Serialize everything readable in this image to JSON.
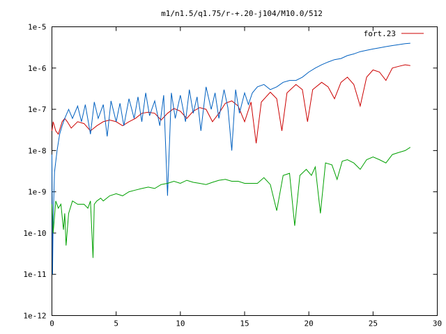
{
  "chart_data": {
    "type": "line",
    "title": "m1/n1.5/q1.75/r-+.20-j104/M10.0/512",
    "xlabel": "",
    "ylabel": "",
    "xlim": [
      0,
      30
    ],
    "ylim": [
      1e-12,
      1e-05
    ],
    "yscale": "log",
    "grid": false,
    "legend_position": "top-right",
    "x_ticks": [
      0,
      5,
      10,
      15,
      20,
      25,
      30
    ],
    "x_tick_labels": [
      "0",
      "5",
      "10",
      "15",
      "20",
      "25",
      "30"
    ],
    "y_ticks": [
      1e-12,
      1e-11,
      1e-10,
      1e-09,
      1e-08,
      1e-07,
      1e-06,
      1e-05
    ],
    "y_tick_labels": [
      "1e-12",
      "1e-11",
      "1e-10",
      "1e-9",
      "1e-8",
      "1e-7",
      "1e-6",
      "1e-5"
    ],
    "series": [
      {
        "name": "fort.23",
        "color": "#cc0000",
        "x": [
          0,
          0.1,
          0.3,
          0.5,
          0.8,
          1.0,
          1.2,
          1.5,
          2.0,
          2.5,
          3.0,
          3.5,
          4.0,
          4.5,
          5.0,
          5.5,
          6.0,
          6.5,
          7.0,
          7.5,
          8.0,
          8.5,
          9.0,
          9.5,
          10.0,
          10.5,
          11.0,
          11.5,
          12.0,
          12.5,
          13.0,
          13.5,
          14.0,
          14.5,
          15.0,
          15.5,
          15.9,
          16.3,
          17.0,
          17.5,
          17.9,
          18.3,
          19.0,
          19.5,
          19.9,
          20.3,
          21.0,
          21.5,
          22.0,
          22.5,
          23.0,
          23.5,
          24.0,
          24.5,
          25.0,
          25.5,
          26.0,
          26.5,
          27.0,
          27.5,
          27.9
        ],
        "y": [
          3e-08,
          5e-08,
          3e-08,
          2.5e-08,
          5e-08,
          6e-08,
          5e-08,
          3.5e-08,
          5e-08,
          4.5e-08,
          3e-08,
          4e-08,
          5e-08,
          5.5e-08,
          5e-08,
          4e-08,
          5e-08,
          6e-08,
          8e-08,
          8.5e-08,
          8e-08,
          5.5e-08,
          8e-08,
          1.05e-07,
          9e-08,
          6e-08,
          9e-08,
          1.1e-07,
          1e-07,
          5e-08,
          8e-08,
          1.4e-07,
          1.6e-07,
          1.2e-07,
          5e-08,
          1.5e-07,
          1.5e-08,
          1.5e-07,
          2.6e-07,
          1.8e-07,
          3e-08,
          2.5e-07,
          4e-07,
          3e-07,
          5e-08,
          3e-07,
          4.5e-07,
          3.5e-07,
          1.8e-07,
          4.5e-07,
          6e-07,
          4e-07,
          1.2e-07,
          6e-07,
          9e-07,
          8e-07,
          5e-07,
          1e-06,
          1.1e-06,
          1.2e-06,
          1.15e-06
        ]
      },
      {
        "name": "",
        "color": "#0060c0",
        "x": [
          0,
          0.05,
          0.1,
          0.2,
          0.4,
          0.6,
          0.8,
          1.0,
          1.3,
          1.6,
          2.0,
          2.3,
          2.6,
          3.0,
          3.3,
          3.6,
          4.0,
          4.3,
          4.6,
          5.0,
          5.3,
          5.6,
          6.0,
          6.4,
          6.7,
          7.0,
          7.3,
          7.6,
          8.0,
          8.4,
          8.7,
          9.0,
          9.3,
          9.6,
          10.0,
          10.4,
          10.7,
          11.0,
          11.3,
          11.6,
          12.0,
          12.4,
          12.7,
          13.0,
          13.4,
          13.7,
          14.0,
          14.3,
          14.6,
          15.0,
          15.3,
          15.6,
          16.0,
          16.5,
          17.0,
          17.5,
          18.0,
          18.5,
          19.0,
          19.5,
          20.0,
          20.5,
          21.0,
          21.5,
          22.0,
          22.5,
          23.0,
          23.5,
          24.0,
          24.5,
          25.0,
          25.5,
          26.0,
          26.5,
          27.0,
          27.5,
          27.9
        ],
        "y": [
          8e-09,
          1e-11,
          2e-10,
          3e-09,
          1e-08,
          2.5e-08,
          4e-08,
          6e-08,
          1e-07,
          6e-08,
          1.2e-07,
          5e-08,
          1.3e-07,
          2.5e-08,
          1.5e-07,
          6e-08,
          1.3e-07,
          2.2e-08,
          1.6e-07,
          5e-08,
          1.4e-07,
          4e-08,
          1.8e-07,
          6e-08,
          2e-07,
          5e-08,
          2.5e-07,
          7e-08,
          1.6e-07,
          4e-08,
          2.2e-07,
          8e-10,
          2.5e-07,
          6e-08,
          2.2e-07,
          5e-08,
          3e-07,
          8e-08,
          2e-07,
          3e-08,
          3.5e-07,
          1e-07,
          2.5e-07,
          6e-08,
          3e-07,
          1.1e-07,
          1e-08,
          3e-07,
          8e-08,
          2.5e-07,
          1.3e-07,
          2.5e-07,
          3.5e-07,
          4e-07,
          3e-07,
          3.5e-07,
          4.5e-07,
          5e-07,
          5e-07,
          6e-07,
          8e-07,
          1e-06,
          1.2e-06,
          1.4e-06,
          1.6e-06,
          1.7e-06,
          2e-06,
          2.2e-06,
          2.5e-06,
          2.7e-06,
          2.9e-06,
          3.1e-06,
          3.3e-06,
          3.5e-06,
          3.7e-06,
          3.9e-06,
          4e-06
        ]
      },
      {
        "name": "",
        "color": "#00a000",
        "x": [
          0,
          0.1,
          0.3,
          0.5,
          0.7,
          0.9,
          1.0,
          1.1,
          1.3,
          1.6,
          2.0,
          2.5,
          2.8,
          3.0,
          3.2,
          3.3,
          3.5,
          3.8,
          4.0,
          4.5,
          5.0,
          5.5,
          6.0,
          6.5,
          7.0,
          7.5,
          8.0,
          8.5,
          9.0,
          9.5,
          10.0,
          10.5,
          11.0,
          11.5,
          12.0,
          12.5,
          13.0,
          13.5,
          14.0,
          14.5,
          15.0,
          15.5,
          16.0,
          16.5,
          17.0,
          17.5,
          18.0,
          18.5,
          18.9,
          19.3,
          19.8,
          20.2,
          20.5,
          20.9,
          21.3,
          21.8,
          22.2,
          22.6,
          23.0,
          23.5,
          24.0,
          24.5,
          25.0,
          25.5,
          26.0,
          26.5,
          27.0,
          27.5,
          27.9
        ],
        "y": [
          5e-10,
          1e-10,
          6e-10,
          4e-10,
          5e-10,
          1.2e-10,
          3e-10,
          5e-11,
          3e-10,
          6e-10,
          5e-10,
          5e-10,
          4e-10,
          6e-10,
          2.5e-11,
          5e-10,
          6e-10,
          7e-10,
          6e-10,
          8e-10,
          9e-10,
          8e-10,
          1e-09,
          1.1e-09,
          1.2e-09,
          1.3e-09,
          1.2e-09,
          1.5e-09,
          1.6e-09,
          1.8e-09,
          1.6e-09,
          1.9e-09,
          1.7e-09,
          1.6e-09,
          1.5e-09,
          1.7e-09,
          1.9e-09,
          2e-09,
          1.8e-09,
          1.8e-09,
          1.6e-09,
          1.6e-09,
          1.6e-09,
          2.2e-09,
          1.5e-09,
          3.5e-10,
          2.5e-09,
          2.8e-09,
          1.5e-10,
          2.5e-09,
          3.5e-09,
          2.5e-09,
          4e-09,
          3e-10,
          5e-09,
          4.5e-09,
          2e-09,
          5.5e-09,
          6e-09,
          5e-09,
          3.5e-09,
          6e-09,
          7e-09,
          6e-09,
          5e-09,
          8e-09,
          9e-09,
          1e-08,
          1.2e-08
        ]
      }
    ]
  }
}
